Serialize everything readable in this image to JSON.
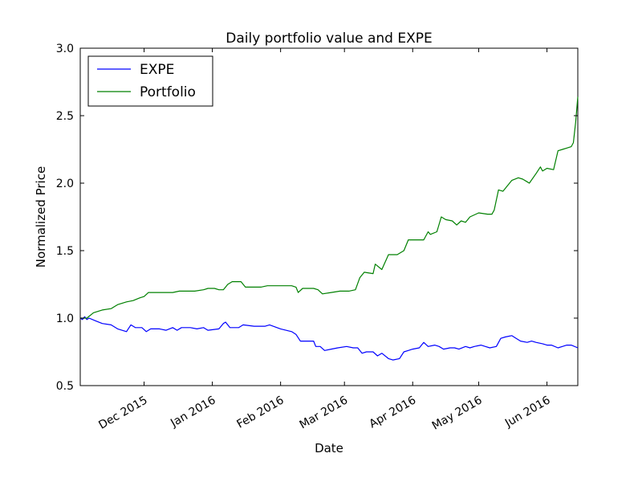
{
  "chart_data": {
    "type": "line",
    "title": "Daily portfolio value and EXPE",
    "xlabel": "Date",
    "ylabel": "Normalized Price",
    "xlim": [
      "2015-11-02",
      "2016-06-15"
    ],
    "ylim": [
      0.5,
      3.0
    ],
    "yticks": [
      "0.5",
      "1.0",
      "1.5",
      "2.0",
      "2.5",
      "3.0"
    ],
    "xticks": [
      {
        "date": "2015-12-01",
        "label": "Dec 2015"
      },
      {
        "date": "2016-01-01",
        "label": "Jan 2016"
      },
      {
        "date": "2016-02-01",
        "label": "Feb 2016"
      },
      {
        "date": "2016-03-01",
        "label": "Mar 2016"
      },
      {
        "date": "2016-04-01",
        "label": "Apr 2016"
      },
      {
        "date": "2016-05-01",
        "label": "May 2016"
      },
      {
        "date": "2016-06-01",
        "label": "Jun 2016"
      }
    ],
    "grid": false,
    "legend_position": "top-left",
    "series": [
      {
        "name": "EXPE",
        "color": "#0000ff",
        "points": [
          [
            "2015-11-02",
            1.0
          ],
          [
            "2015-11-03",
            0.99
          ],
          [
            "2015-11-04",
            1.01
          ],
          [
            "2015-11-05",
            0.99
          ],
          [
            "2015-11-06",
            1.0
          ],
          [
            "2015-11-09",
            0.98
          ],
          [
            "2015-11-12",
            0.96
          ],
          [
            "2015-11-16",
            0.95
          ],
          [
            "2015-11-19",
            0.92
          ],
          [
            "2015-11-23",
            0.9
          ],
          [
            "2015-11-25",
            0.95
          ],
          [
            "2015-11-27",
            0.93
          ],
          [
            "2015-11-30",
            0.93
          ],
          [
            "2015-12-02",
            0.9
          ],
          [
            "2015-12-04",
            0.92
          ],
          [
            "2015-12-08",
            0.92
          ],
          [
            "2015-12-11",
            0.91
          ],
          [
            "2015-12-14",
            0.93
          ],
          [
            "2015-12-16",
            0.91
          ],
          [
            "2015-12-18",
            0.93
          ],
          [
            "2015-12-22",
            0.93
          ],
          [
            "2015-12-25",
            0.92
          ],
          [
            "2015-12-28",
            0.93
          ],
          [
            "2015-12-30",
            0.91
          ],
          [
            "2016-01-04",
            0.92
          ],
          [
            "2016-01-06",
            0.96
          ],
          [
            "2016-01-07",
            0.97
          ],
          [
            "2016-01-09",
            0.93
          ],
          [
            "2016-01-13",
            0.93
          ],
          [
            "2016-01-15",
            0.95
          ],
          [
            "2016-01-20",
            0.94
          ],
          [
            "2016-01-25",
            0.94
          ],
          [
            "2016-01-27",
            0.95
          ],
          [
            "2016-02-01",
            0.92
          ],
          [
            "2016-02-06",
            0.9
          ],
          [
            "2016-02-08",
            0.88
          ],
          [
            "2016-02-10",
            0.83
          ],
          [
            "2016-02-16",
            0.83
          ],
          [
            "2016-02-17",
            0.79
          ],
          [
            "2016-02-19",
            0.79
          ],
          [
            "2016-02-21",
            0.76
          ],
          [
            "2016-02-24",
            0.77
          ],
          [
            "2016-02-27",
            0.78
          ],
          [
            "2016-03-02",
            0.79
          ],
          [
            "2016-03-05",
            0.78
          ],
          [
            "2016-03-07",
            0.78
          ],
          [
            "2016-03-09",
            0.74
          ],
          [
            "2016-03-11",
            0.75
          ],
          [
            "2016-03-14",
            0.75
          ],
          [
            "2016-03-16",
            0.72
          ],
          [
            "2016-03-18",
            0.74
          ],
          [
            "2016-03-21",
            0.7
          ],
          [
            "2016-03-23",
            0.69
          ],
          [
            "2016-03-26",
            0.7
          ],
          [
            "2016-03-28",
            0.75
          ],
          [
            "2016-03-30",
            0.76
          ],
          [
            "2016-04-01",
            0.77
          ],
          [
            "2016-04-04",
            0.78
          ],
          [
            "2016-04-06",
            0.82
          ],
          [
            "2016-04-08",
            0.79
          ],
          [
            "2016-04-11",
            0.8
          ],
          [
            "2016-04-13",
            0.79
          ],
          [
            "2016-04-15",
            0.77
          ],
          [
            "2016-04-18",
            0.78
          ],
          [
            "2016-04-20",
            0.78
          ],
          [
            "2016-04-22",
            0.77
          ],
          [
            "2016-04-25",
            0.79
          ],
          [
            "2016-04-27",
            0.78
          ],
          [
            "2016-04-29",
            0.79
          ],
          [
            "2016-05-02",
            0.8
          ],
          [
            "2016-05-04",
            0.79
          ],
          [
            "2016-05-06",
            0.78
          ],
          [
            "2016-05-09",
            0.79
          ],
          [
            "2016-05-11",
            0.85
          ],
          [
            "2016-05-13",
            0.86
          ],
          [
            "2016-05-16",
            0.87
          ],
          [
            "2016-05-18",
            0.85
          ],
          [
            "2016-05-20",
            0.83
          ],
          [
            "2016-05-23",
            0.82
          ],
          [
            "2016-05-25",
            0.83
          ],
          [
            "2016-05-27",
            0.82
          ],
          [
            "2016-05-30",
            0.81
          ],
          [
            "2016-06-01",
            0.8
          ],
          [
            "2016-06-03",
            0.8
          ],
          [
            "2016-06-06",
            0.78
          ],
          [
            "2016-06-08",
            0.79
          ],
          [
            "2016-06-10",
            0.8
          ],
          [
            "2016-06-12",
            0.8
          ],
          [
            "2016-06-15",
            0.78
          ]
        ]
      },
      {
        "name": "Portfolio",
        "color": "#008000",
        "points": [
          [
            "2015-11-02",
            1.0
          ],
          [
            "2015-11-03",
            1.0
          ],
          [
            "2015-11-05",
            1.0
          ],
          [
            "2015-11-08",
            1.04
          ],
          [
            "2015-11-12",
            1.06
          ],
          [
            "2015-11-16",
            1.07
          ],
          [
            "2015-11-19",
            1.1
          ],
          [
            "2015-11-23",
            1.12
          ],
          [
            "2015-11-26",
            1.13
          ],
          [
            "2015-11-29",
            1.15
          ],
          [
            "2015-12-01",
            1.16
          ],
          [
            "2015-12-03",
            1.19
          ],
          [
            "2015-12-07",
            1.19
          ],
          [
            "2015-12-14",
            1.19
          ],
          [
            "2015-12-17",
            1.2
          ],
          [
            "2015-12-24",
            1.2
          ],
          [
            "2015-12-28",
            1.21
          ],
          [
            "2015-12-30",
            1.22
          ],
          [
            "2016-01-02",
            1.22
          ],
          [
            "2016-01-04",
            1.21
          ],
          [
            "2016-01-06",
            1.21
          ],
          [
            "2016-01-08",
            1.25
          ],
          [
            "2016-01-10",
            1.27
          ],
          [
            "2016-01-14",
            1.27
          ],
          [
            "2016-01-16",
            1.23
          ],
          [
            "2016-01-23",
            1.23
          ],
          [
            "2016-01-26",
            1.24
          ],
          [
            "2016-02-01",
            1.24
          ],
          [
            "2016-02-06",
            1.24
          ],
          [
            "2016-02-08",
            1.23
          ],
          [
            "2016-02-09",
            1.19
          ],
          [
            "2016-02-11",
            1.22
          ],
          [
            "2016-02-16",
            1.22
          ],
          [
            "2016-02-18",
            1.21
          ],
          [
            "2016-02-20",
            1.18
          ],
          [
            "2016-02-24",
            1.19
          ],
          [
            "2016-02-28",
            1.2
          ],
          [
            "2016-03-03",
            1.2
          ],
          [
            "2016-03-06",
            1.21
          ],
          [
            "2016-03-08",
            1.3
          ],
          [
            "2016-03-10",
            1.34
          ],
          [
            "2016-03-14",
            1.33
          ],
          [
            "2016-03-15",
            1.4
          ],
          [
            "2016-03-18",
            1.36
          ],
          [
            "2016-03-21",
            1.47
          ],
          [
            "2016-03-25",
            1.47
          ],
          [
            "2016-03-28",
            1.5
          ],
          [
            "2016-03-30",
            1.58
          ],
          [
            "2016-04-03",
            1.58
          ],
          [
            "2016-04-06",
            1.58
          ],
          [
            "2016-04-08",
            1.64
          ],
          [
            "2016-04-09",
            1.62
          ],
          [
            "2016-04-12",
            1.64
          ],
          [
            "2016-04-14",
            1.75
          ],
          [
            "2016-04-16",
            1.73
          ],
          [
            "2016-04-19",
            1.72
          ],
          [
            "2016-04-21",
            1.69
          ],
          [
            "2016-04-23",
            1.72
          ],
          [
            "2016-04-25",
            1.71
          ],
          [
            "2016-04-27",
            1.75
          ],
          [
            "2016-05-01",
            1.78
          ],
          [
            "2016-05-05",
            1.77
          ],
          [
            "2016-05-07",
            1.77
          ],
          [
            "2016-05-08",
            1.8
          ],
          [
            "2016-05-10",
            1.95
          ],
          [
            "2016-05-12",
            1.94
          ],
          [
            "2016-05-14",
            1.98
          ],
          [
            "2016-05-16",
            2.02
          ],
          [
            "2016-05-19",
            2.04
          ],
          [
            "2016-05-21",
            2.03
          ],
          [
            "2016-05-23",
            2.01
          ],
          [
            "2016-05-24",
            2.0
          ],
          [
            "2016-05-27",
            2.07
          ],
          [
            "2016-05-29",
            2.12
          ],
          [
            "2016-05-30",
            2.09
          ],
          [
            "2016-06-01",
            2.11
          ],
          [
            "2016-06-04",
            2.1
          ],
          [
            "2016-06-06",
            2.24
          ],
          [
            "2016-06-08",
            2.25
          ],
          [
            "2016-06-10",
            2.26
          ],
          [
            "2016-06-12",
            2.27
          ],
          [
            "2016-06-13",
            2.3
          ],
          [
            "2016-06-14",
            2.45
          ],
          [
            "2016-06-15",
            2.64
          ]
        ]
      }
    ]
  }
}
